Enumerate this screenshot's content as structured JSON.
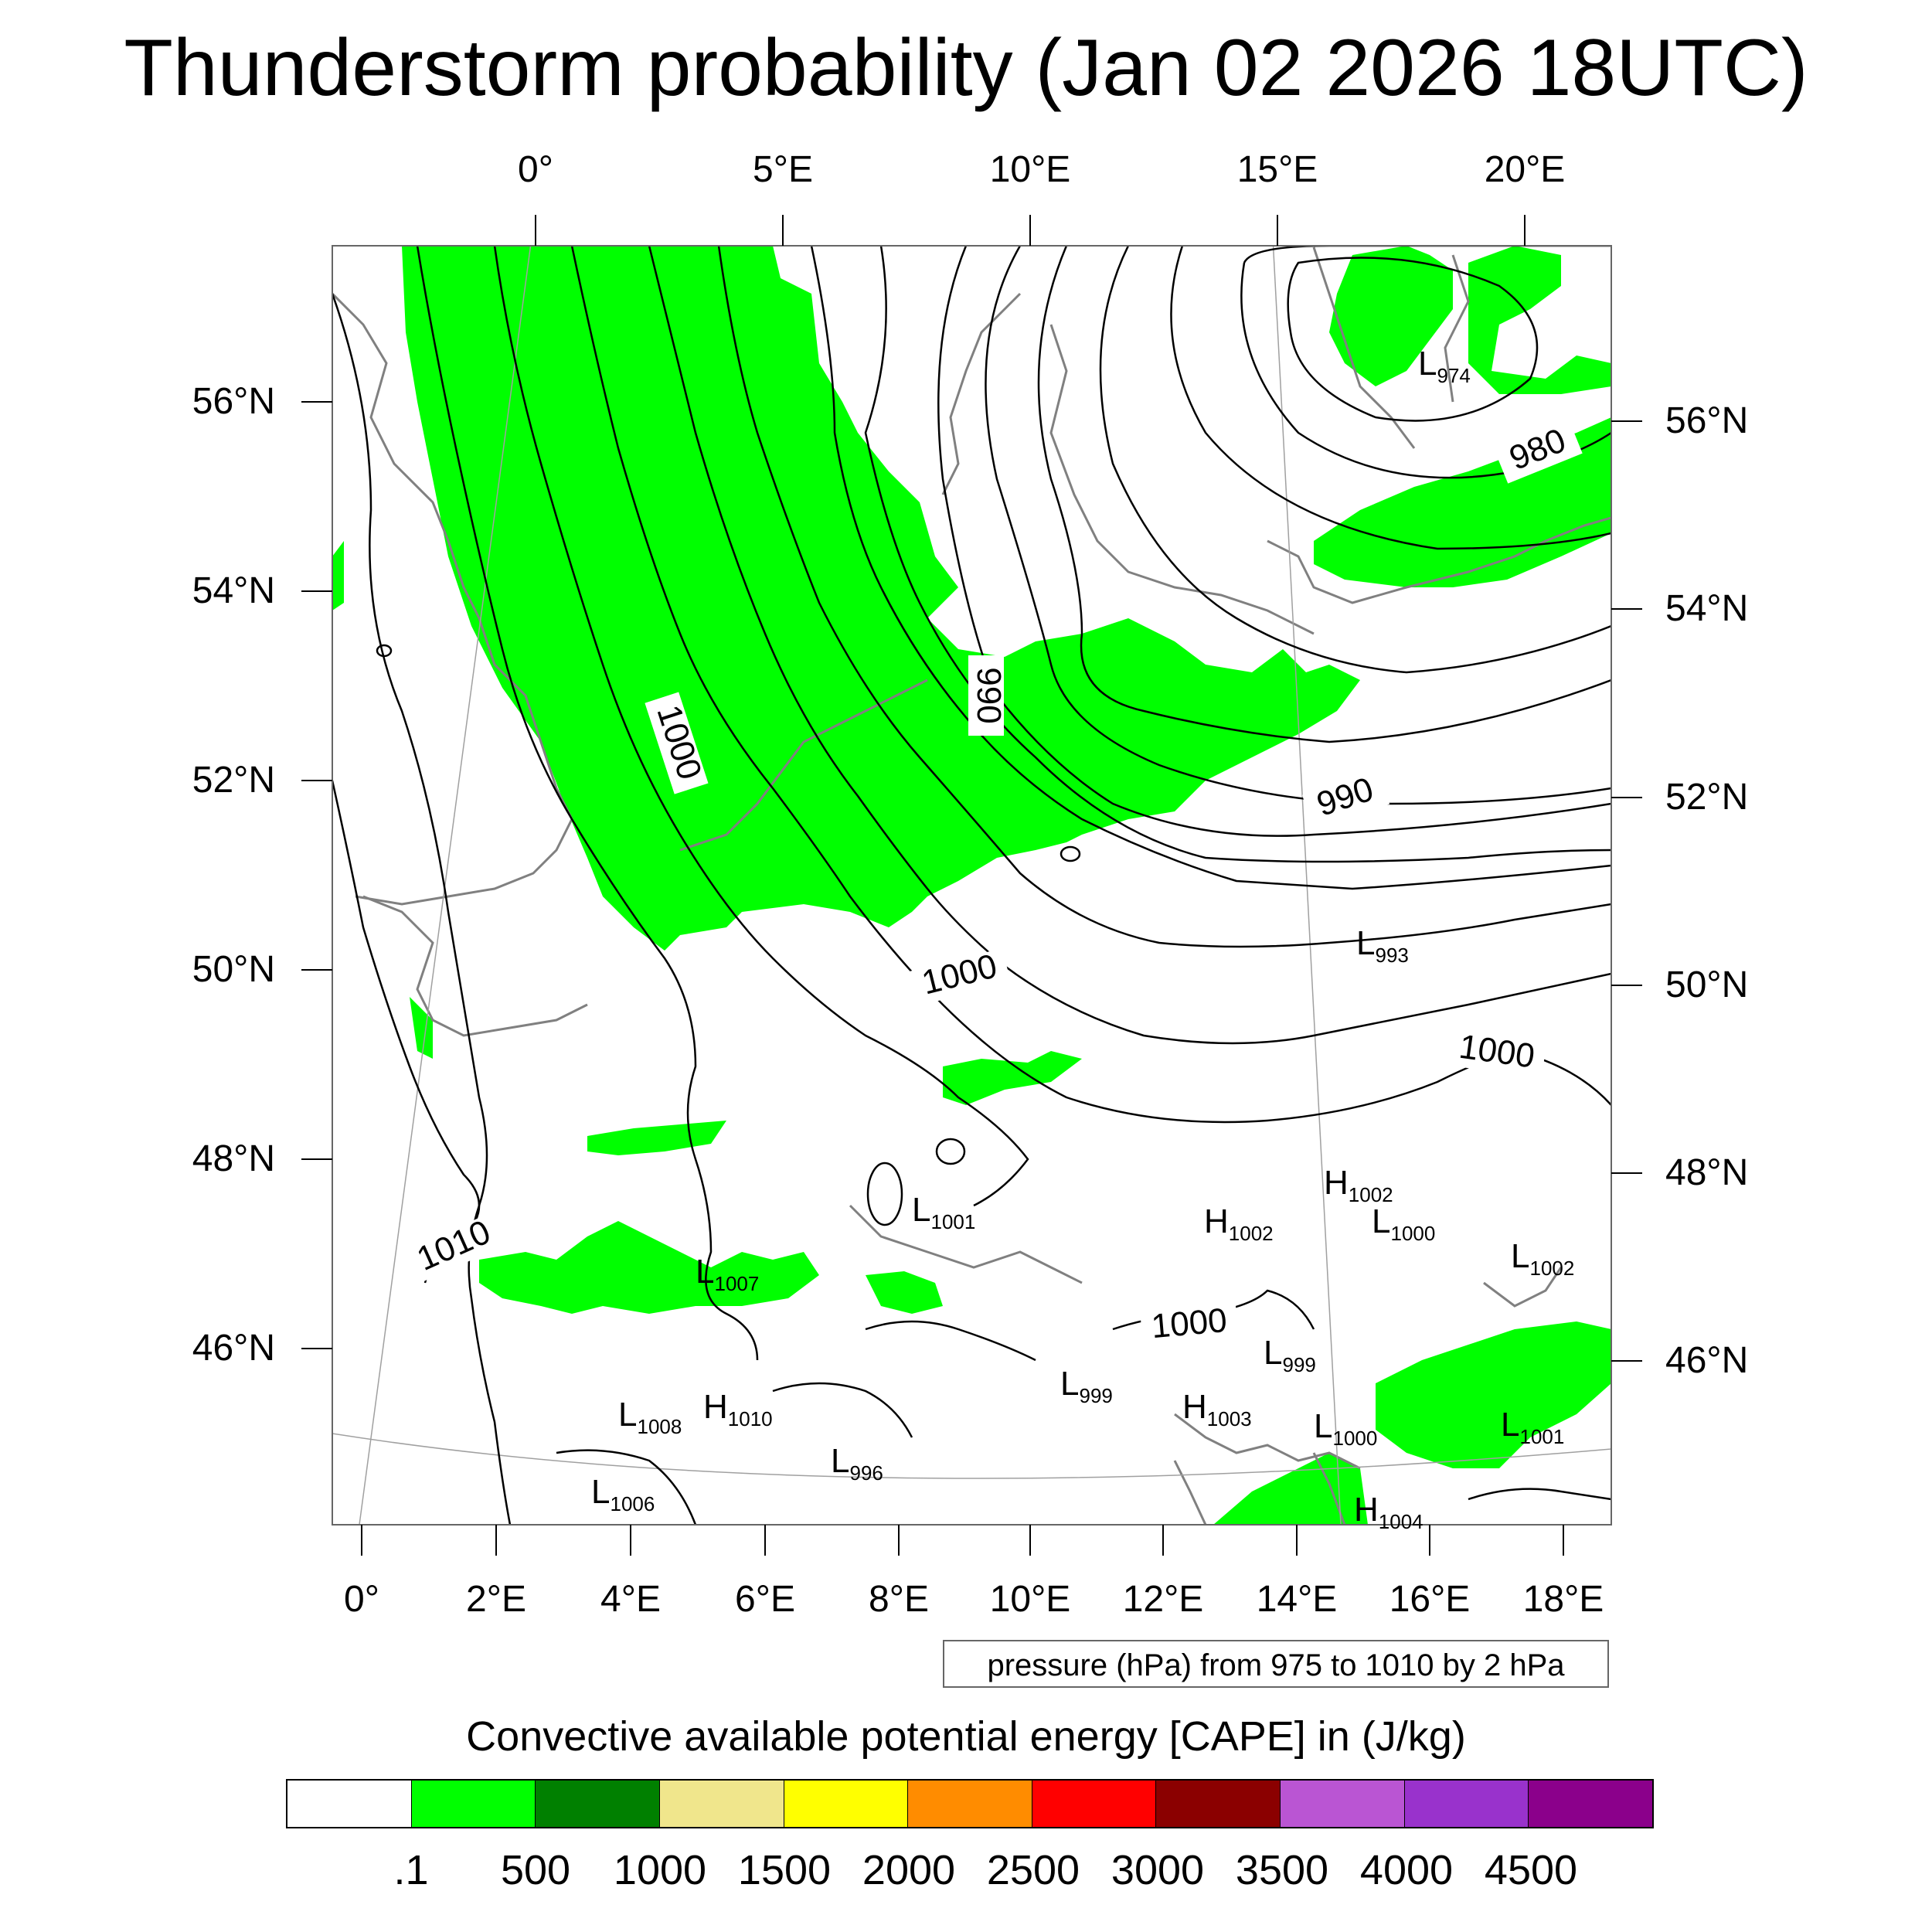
{
  "title": "Thunderstorm probability (Jan 02 2026 18UTC)",
  "lon_top": [
    "0°",
    "5°E",
    "10°E",
    "15°E",
    "20°E"
  ],
  "lon_bottom": [
    "0°",
    "2°E",
    "4°E",
    "6°E",
    "8°E",
    "10°E",
    "12°E",
    "14°E",
    "16°E",
    "18°E"
  ],
  "lat_left": [
    "56°N",
    "54°N",
    "52°N",
    "50°N",
    "48°N",
    "46°N"
  ],
  "lat_right": [
    "56°N",
    "54°N",
    "52°N",
    "50°N",
    "48°N",
    "46°N"
  ],
  "contour_labels": [
    "980",
    "990",
    "1000",
    "990",
    "1000",
    "1000",
    "1010",
    "1000"
  ],
  "centers": [
    {
      "type": "L",
      "value": "974"
    },
    {
      "type": "L",
      "value": "993"
    },
    {
      "type": "H",
      "value": "1002"
    },
    {
      "type": "L",
      "value": "1001"
    },
    {
      "type": "H",
      "value": "1002"
    },
    {
      "type": "L",
      "value": "1000"
    },
    {
      "type": "L",
      "value": "1002"
    },
    {
      "type": "L",
      "value": "1007"
    },
    {
      "type": "L",
      "value": "999"
    },
    {
      "type": "L",
      "value": "999"
    },
    {
      "type": "H",
      "value": "1003"
    },
    {
      "type": "L",
      "value": "1008"
    },
    {
      "type": "H",
      "value": "1010"
    },
    {
      "type": "L",
      "value": "996"
    },
    {
      "type": "L",
      "value": "1000"
    },
    {
      "type": "L",
      "value": "1001"
    },
    {
      "type": "L",
      "value": "1006"
    },
    {
      "type": "H",
      "value": "1004"
    }
  ],
  "contour_info": "pressure (hPa) from 975 to 1010 by 2 hPa",
  "colorbar": {
    "title": "Convective available potential energy [CAPE] in (J/kg)",
    "colors": [
      "#ffffff",
      "#00ff00",
      "#008000",
      "#f0e68c",
      "#ffff00",
      "#ff8c00",
      "#ff0000",
      "#8b0000",
      "#ba55d3",
      "#9932cc",
      "#8b008b"
    ],
    "labels": [
      ".1",
      "500",
      "1000",
      "1500",
      "2000",
      "2500",
      "3000",
      "3500",
      "4000",
      "4500"
    ]
  },
  "colors": {
    "cape_green": "#00ff00",
    "coast": "#808080",
    "isobar": "#000000"
  }
}
